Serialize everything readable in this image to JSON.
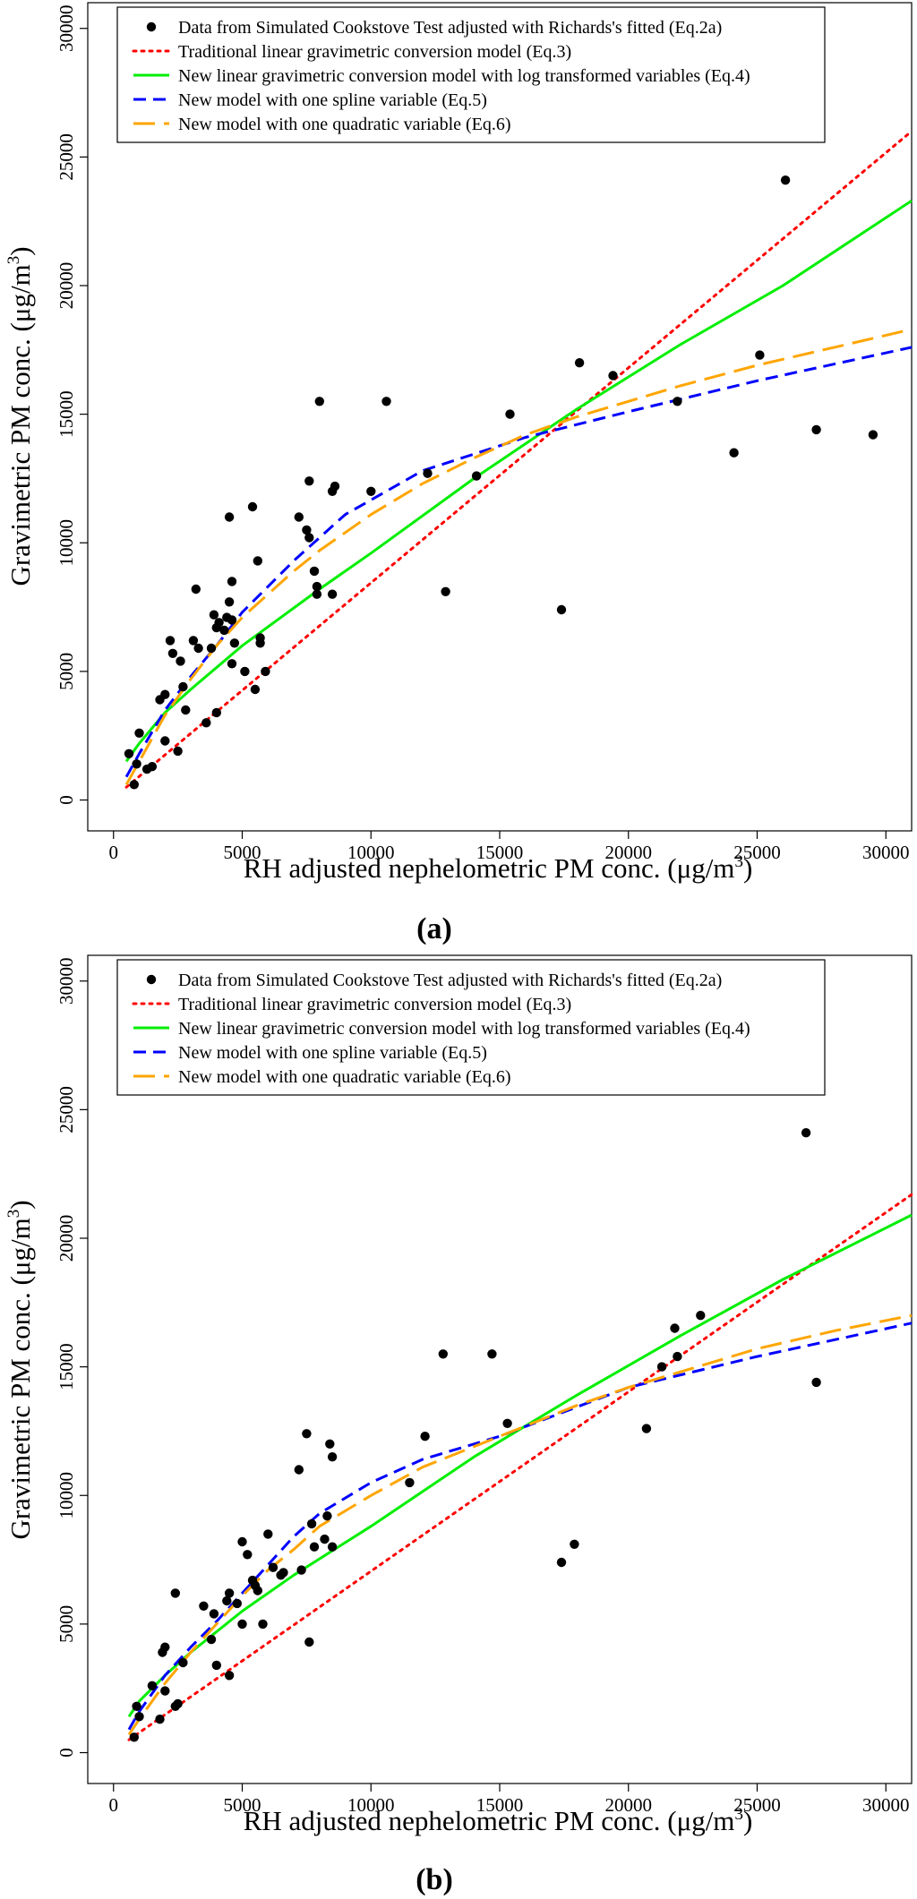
{
  "figure": {
    "ylabel_main": "Gravimetric PM conc. (",
    "ylabel_unit": "μg/m",
    "ylabel_sup": "3",
    "ylabel_close": ")",
    "xlabel_main": "RH adjusted nephelometric PM conc. (",
    "xlabel_unit": "μg/m",
    "xlabel_sup": "3",
    "xlabel_close": ")"
  },
  "legend": [
    {
      "key": "data",
      "label": "Data from Simulated Cookstove Test adjusted with Richards's fitted (Eq.2a)",
      "color": "#000000",
      "style": "point"
    },
    {
      "key": "traditional",
      "label": "Traditional linear gravimetric conversion model (Eq.3)",
      "color": "#ff0000",
      "style": "dotted"
    },
    {
      "key": "loglinear",
      "label": "New linear gravimetric conversion model with log transformed variables (Eq.4)",
      "color": "#00ee00",
      "style": "solid"
    },
    {
      "key": "spline",
      "label": "New model with one spline variable (Eq.5)",
      "color": "#0000ff",
      "style": "dashed"
    },
    {
      "key": "quadratic",
      "label": "New model with one quadratic variable (Eq.6)",
      "color": "#ffa500",
      "style": "longdash"
    }
  ],
  "chart_data": [
    {
      "type": "scatter",
      "panel_label": "(a)",
      "xlim": [
        -1000,
        31000
      ],
      "ylim": [
        -1200,
        31000
      ],
      "xticks": [
        0,
        5000,
        10000,
        15000,
        20000,
        25000,
        30000
      ],
      "yticks": [
        0,
        5000,
        10000,
        15000,
        20000,
        25000,
        30000
      ],
      "points": [
        [
          600,
          1800
        ],
        [
          800,
          600
        ],
        [
          900,
          1400
        ],
        [
          1000,
          2600
        ],
        [
          1300,
          1200
        ],
        [
          1500,
          1300
        ],
        [
          1800,
          3900
        ],
        [
          2000,
          4100
        ],
        [
          2000,
          2300
        ],
        [
          2200,
          6200
        ],
        [
          2300,
          5700
        ],
        [
          2500,
          1900
        ],
        [
          2600,
          5400
        ],
        [
          2700,
          4400
        ],
        [
          2800,
          3500
        ],
        [
          3100,
          6200
        ],
        [
          3200,
          8200
        ],
        [
          3300,
          5900
        ],
        [
          3600,
          3000
        ],
        [
          3800,
          5900
        ],
        [
          3900,
          7200
        ],
        [
          4000,
          3400
        ],
        [
          4000,
          6700
        ],
        [
          4100,
          6900
        ],
        [
          4300,
          6600
        ],
        [
          4400,
          7100
        ],
        [
          4500,
          11000
        ],
        [
          4500,
          7700
        ],
        [
          4600,
          8500
        ],
        [
          4600,
          7000
        ],
        [
          4600,
          5300
        ],
        [
          4700,
          6100
        ],
        [
          5100,
          5000
        ],
        [
          5400,
          11400
        ],
        [
          5500,
          4300
        ],
        [
          5600,
          9300
        ],
        [
          5700,
          6100
        ],
        [
          5700,
          6300
        ],
        [
          5900,
          5000
        ],
        [
          7200,
          11000
        ],
        [
          7500,
          10500
        ],
        [
          7600,
          12400
        ],
        [
          7600,
          10200
        ],
        [
          7800,
          8900
        ],
        [
          7900,
          8300
        ],
        [
          8000,
          15500
        ],
        [
          7900,
          8000
        ],
        [
          8500,
          12000
        ],
        [
          8500,
          8000
        ],
        [
          8600,
          12200
        ],
        [
          10000,
          12000
        ],
        [
          10600,
          15500
        ],
        [
          12200,
          12700
        ],
        [
          12900,
          8100
        ],
        [
          14100,
          12600
        ],
        [
          15400,
          15000
        ],
        [
          17400,
          7400
        ],
        [
          18100,
          17000
        ],
        [
          19400,
          16500
        ],
        [
          21900,
          15500
        ],
        [
          24100,
          13500
        ],
        [
          25100,
          17300
        ],
        [
          26100,
          24100
        ],
        [
          27300,
          14400
        ],
        [
          29500,
          14200
        ]
      ],
      "series": [
        {
          "key": "traditional",
          "name": "Traditional linear gravimetric conversion model (Eq.3)",
          "x": [
            500,
            31000
          ],
          "y": [
            500,
            26000
          ]
        },
        {
          "key": "loglinear",
          "name": "New linear gravimetric conversion model with log transformed variables (Eq.4)",
          "x": [
            500,
            1000,
            2000,
            3000,
            5000,
            8000,
            10000,
            14000,
            18000,
            22000,
            26000,
            31000
          ],
          "y": [
            1500,
            2200,
            3400,
            4300,
            6000,
            8200,
            9600,
            12500,
            15200,
            17700,
            20000,
            23300
          ]
        },
        {
          "key": "spline",
          "name": "New model with one spline variable (Eq.5)",
          "x": [
            500,
            1000,
            2000,
            3000,
            4000,
            5000,
            6000,
            7000,
            8000,
            9000,
            12000,
            16000,
            20000,
            25000,
            31000
          ],
          "y": [
            900,
            1800,
            3500,
            4800,
            6000,
            7300,
            8300,
            9300,
            10200,
            11100,
            12800,
            14100,
            15100,
            16300,
            17600
          ]
        },
        {
          "key": "quadratic",
          "name": "New model with one quadratic variable (Eq.6)",
          "x": [
            500,
            1000,
            2000,
            3000,
            4000,
            5000,
            6000,
            7000,
            8000,
            10000,
            12000,
            14000,
            16000,
            18000,
            20000,
            22000,
            25000,
            28000,
            31000
          ],
          "y": [
            600,
            1500,
            3300,
            4700,
            6000,
            7100,
            8000,
            8900,
            9700,
            11100,
            12300,
            13300,
            14200,
            14900,
            15500,
            16100,
            16900,
            17600,
            18300
          ]
        }
      ]
    },
    {
      "type": "scatter",
      "panel_label": "(b)",
      "xlim": [
        -1000,
        31000
      ],
      "ylim": [
        -1200,
        31000
      ],
      "xticks": [
        0,
        5000,
        10000,
        15000,
        20000,
        25000,
        30000
      ],
      "yticks": [
        0,
        5000,
        10000,
        15000,
        20000,
        25000,
        30000
      ],
      "points": [
        [
          800,
          600
        ],
        [
          900,
          1800
        ],
        [
          1000,
          1400
        ],
        [
          1500,
          2600
        ],
        [
          1800,
          1300
        ],
        [
          1900,
          3900
        ],
        [
          2000,
          4100
        ],
        [
          2000,
          2400
        ],
        [
          2400,
          6200
        ],
        [
          2400,
          1800
        ],
        [
          2500,
          1900
        ],
        [
          2700,
          3500
        ],
        [
          3500,
          5700
        ],
        [
          3800,
          4400
        ],
        [
          3900,
          5400
        ],
        [
          4000,
          3400
        ],
        [
          4400,
          5900
        ],
        [
          4500,
          3000
        ],
        [
          4500,
          6200
        ],
        [
          4800,
          5800
        ],
        [
          5000,
          8200
        ],
        [
          5000,
          5000
        ],
        [
          5200,
          7700
        ],
        [
          5400,
          6700
        ],
        [
          5500,
          6500
        ],
        [
          5600,
          6300
        ],
        [
          5800,
          5000
        ],
        [
          6000,
          8500
        ],
        [
          6200,
          7200
        ],
        [
          6500,
          6900
        ],
        [
          6600,
          7000
        ],
        [
          7200,
          11000
        ],
        [
          7300,
          7100
        ],
        [
          7500,
          12400
        ],
        [
          7600,
          4300
        ],
        [
          7700,
          8900
        ],
        [
          7800,
          8000
        ],
        [
          8200,
          8300
        ],
        [
          8300,
          9200
        ],
        [
          8400,
          12000
        ],
        [
          8500,
          11500
        ],
        [
          8500,
          8000
        ],
        [
          11500,
          10500
        ],
        [
          12100,
          12300
        ],
        [
          12800,
          15500
        ],
        [
          14700,
          15500
        ],
        [
          15300,
          12800
        ],
        [
          17400,
          7400
        ],
        [
          17900,
          8100
        ],
        [
          20700,
          12600
        ],
        [
          21300,
          15000
        ],
        [
          21800,
          16500
        ],
        [
          21900,
          15400
        ],
        [
          22800,
          17000
        ],
        [
          26900,
          24100
        ],
        [
          27300,
          14400
        ]
      ],
      "series": [
        {
          "key": "traditional",
          "name": "Traditional linear gravimetric conversion model (Eq.3)",
          "x": [
            600,
            31000
          ],
          "y": [
            500,
            21700
          ]
        },
        {
          "key": "loglinear",
          "name": "New linear gravimetric conversion model with log transformed variables (Eq.4)",
          "x": [
            600,
            1000,
            2000,
            3000,
            5000,
            7000,
            10000,
            14000,
            18000,
            22000,
            26000,
            31000
          ],
          "y": [
            1400,
            2000,
            3000,
            3900,
            5500,
            6900,
            8800,
            11500,
            13900,
            16200,
            18400,
            20900
          ]
        },
        {
          "key": "spline",
          "name": "New model with one spline variable (Eq.5)",
          "x": [
            600,
            1000,
            2000,
            3000,
            4000,
            5000,
            6000,
            7000,
            8000,
            10000,
            12000,
            15000,
            20000,
            25000,
            31000
          ],
          "y": [
            900,
            1600,
            3000,
            4100,
            5100,
            6200,
            7300,
            8400,
            9300,
            10500,
            11400,
            12300,
            14200,
            15400,
            16700
          ]
        },
        {
          "key": "quadratic",
          "name": "New model with one quadratic variable (Eq.6)",
          "x": [
            600,
            1000,
            2000,
            3000,
            4000,
            5000,
            6000,
            7000,
            8000,
            10000,
            12000,
            14000,
            16000,
            18000,
            20000,
            22000,
            25000,
            28000,
            31000
          ],
          "y": [
            700,
            1300,
            2700,
            3900,
            5000,
            6100,
            7100,
            7900,
            8800,
            10000,
            11100,
            11900,
            12700,
            13500,
            14200,
            14800,
            15700,
            16400,
            17000
          ]
        }
      ]
    }
  ]
}
